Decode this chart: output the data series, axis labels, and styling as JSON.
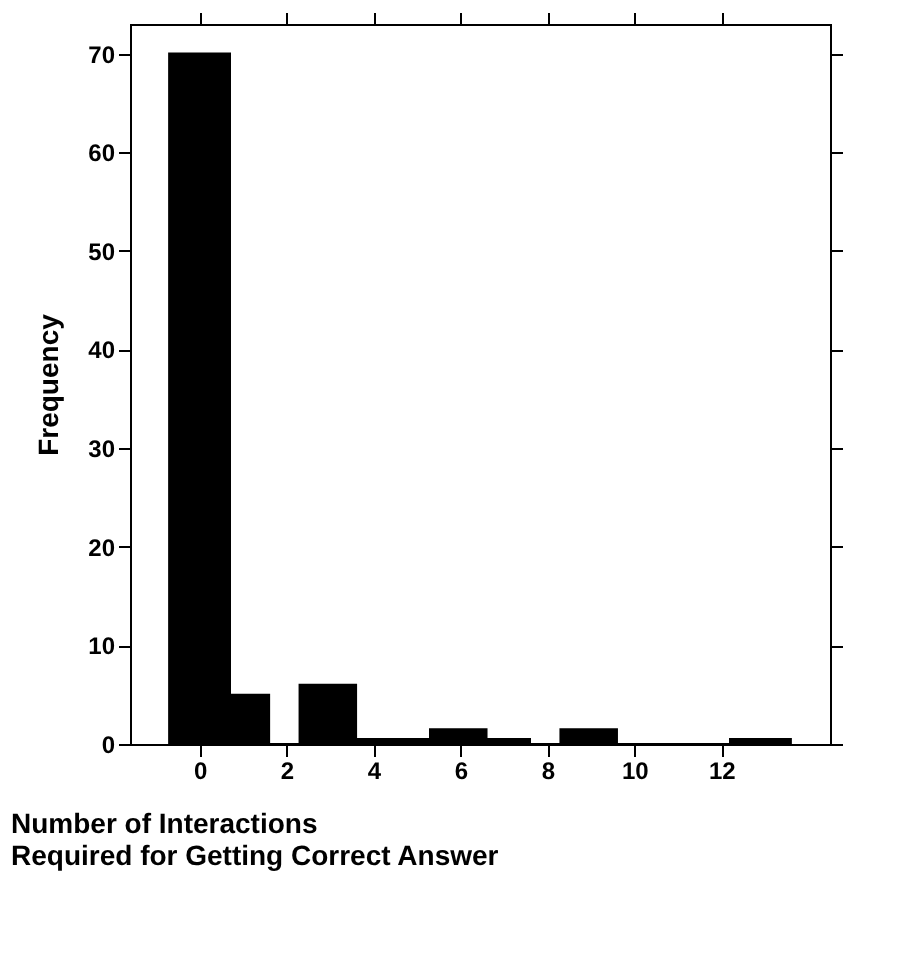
{
  "chart_data": {
    "type": "histogram",
    "xlabel": "Number of Interactions\nRequired for Getting Correct Answer",
    "ylabel": "Frequency",
    "bins": [
      -0.7,
      0.7,
      1.6,
      2.3,
      3.6,
      5.3,
      6.6,
      7.6,
      8.3,
      9.6,
      12.2,
      13.6
    ],
    "values": [
      70,
      5,
      0,
      6,
      0.5,
      1.5,
      0.5,
      0,
      1.5,
      0,
      0.5
    ],
    "color": "#000000",
    "xlim": [
      -1.6,
      14.5
    ],
    "xticks": [
      0,
      2,
      4,
      6,
      8,
      10,
      12
    ],
    "ylim": [
      0,
      73
    ],
    "yticks": [
      0,
      10,
      20,
      30,
      40,
      50,
      60,
      70
    ],
    "grid": false
  }
}
